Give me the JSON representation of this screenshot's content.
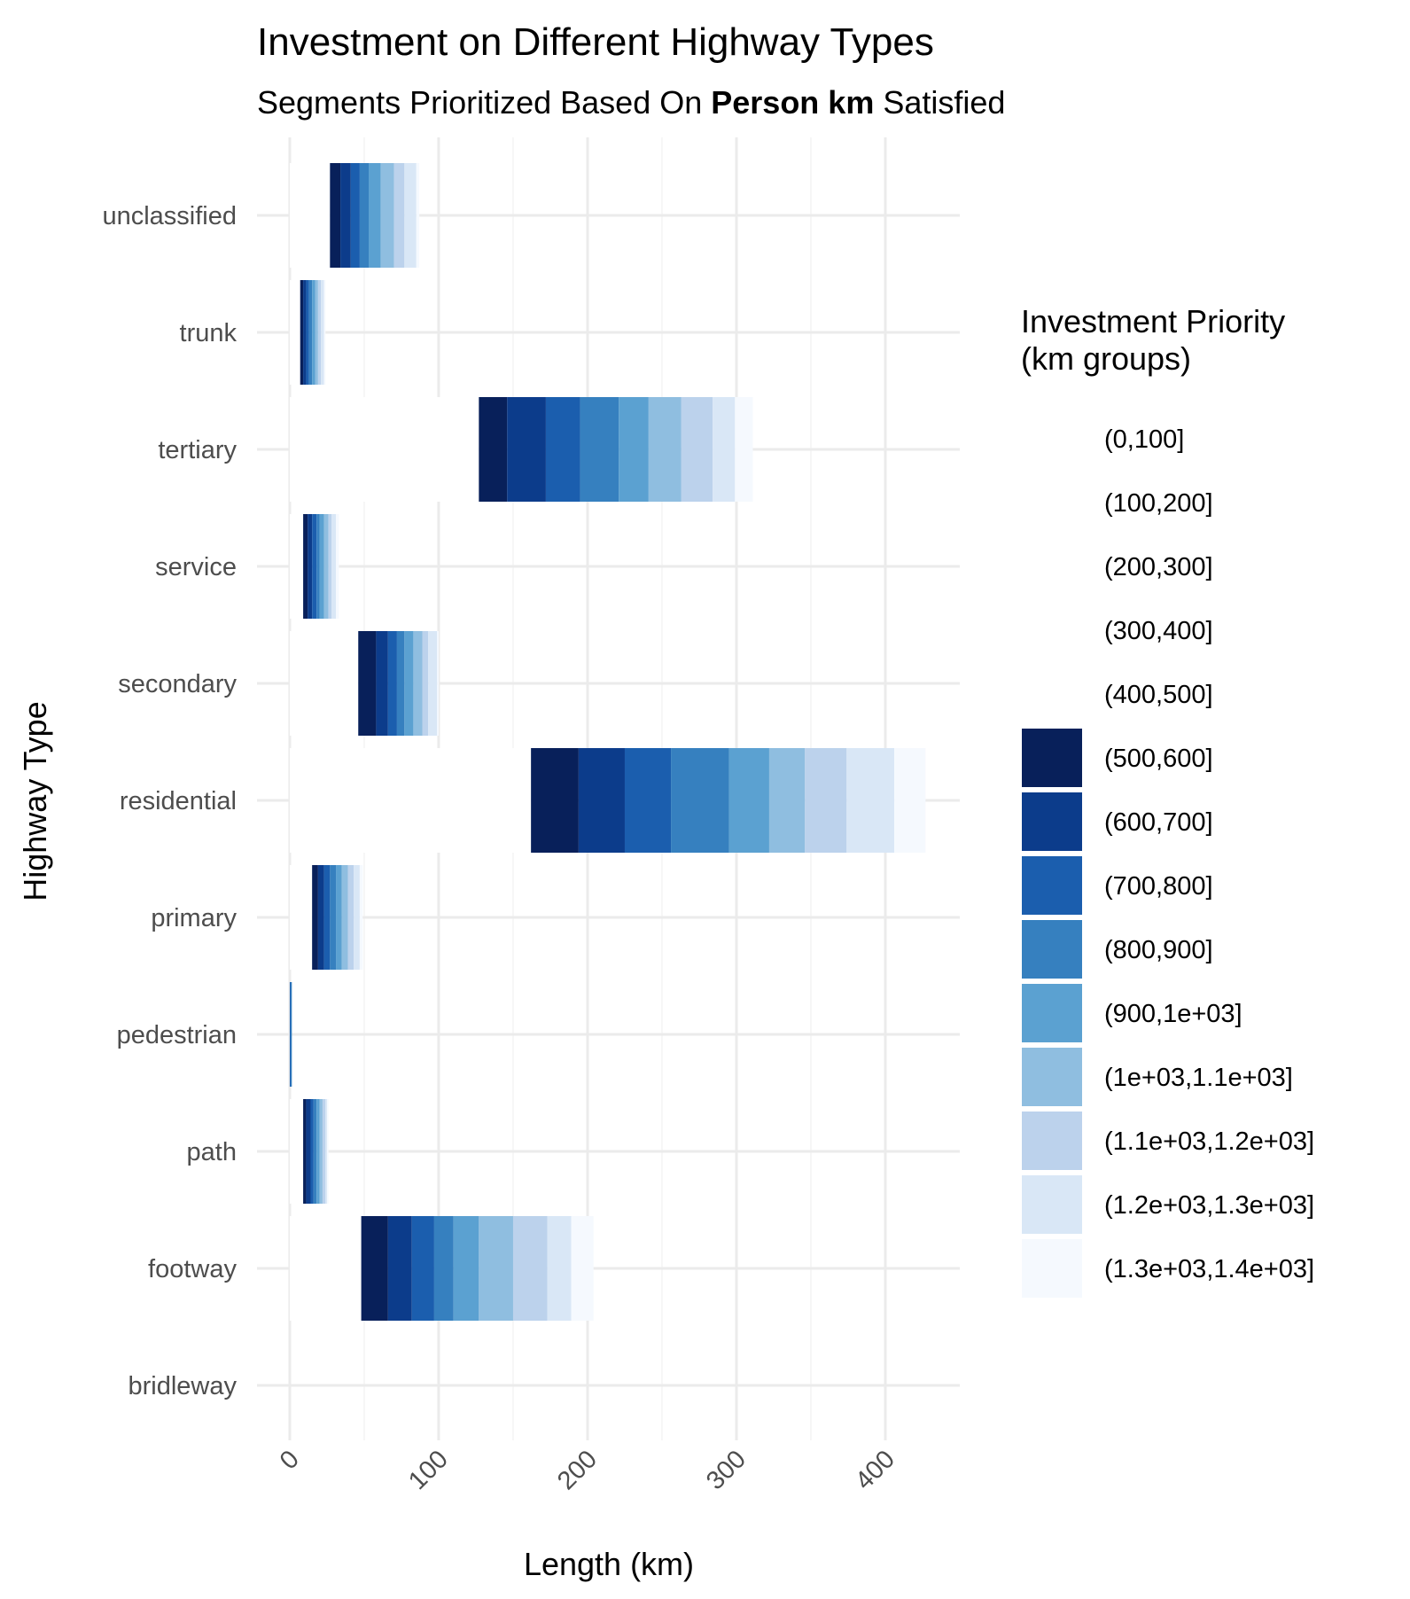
{
  "chart_data": {
    "type": "bar",
    "orientation": "horizontal",
    "stacked": true,
    "title": "Investment on Different Highway Types",
    "subtitle_parts": [
      {
        "text": "Segments Prioritized Based On ",
        "bold": false
      },
      {
        "text": "Person km",
        "bold": true
      },
      {
        "text": " Satisfied",
        "bold": false
      }
    ],
    "xlabel": "Length (km)",
    "ylabel": "Highway Type",
    "xlim": [
      -22,
      450
    ],
    "x_ticks": [
      "0",
      "100",
      "200",
      "300",
      "400"
    ],
    "x_tick_values": [
      0,
      100,
      200,
      300,
      400
    ],
    "grid": true,
    "legend": {
      "title_lines": [
        "Investment Priority",
        "(km groups)"
      ],
      "placement": "right"
    },
    "categories": [
      "unclassified",
      "trunk",
      "tertiary",
      "service",
      "secondary",
      "residential",
      "primary",
      "pedestrian",
      "path",
      "footway",
      "bridleway"
    ],
    "series": [
      {
        "name": "(0,100]",
        "color": "#ffffff",
        "values": [
          0,
          0,
          0,
          0,
          0,
          0,
          0,
          0,
          0,
          0,
          0
        ]
      },
      {
        "name": "(100,200]",
        "color": "#ffffff",
        "values": [
          0,
          0,
          0,
          0,
          0,
          0,
          0,
          0,
          0,
          0,
          0
        ]
      },
      {
        "name": "(200,300]",
        "color": "#ffffff",
        "values": [
          0,
          0,
          0,
          0,
          0,
          0,
          0,
          0,
          0,
          0,
          0
        ]
      },
      {
        "name": "(300,400]",
        "color": "#ffffff",
        "values": [
          0,
          0,
          0,
          0,
          0,
          0,
          0,
          0,
          0,
          0,
          0
        ]
      },
      {
        "name": "(400,500]",
        "color": "#ffffff",
        "values": [
          27,
          7,
          127,
          9,
          46,
          162,
          15,
          0,
          9,
          48,
          0
        ]
      },
      {
        "name": "(500,600]",
        "color": "#08205a",
        "values": [
          7,
          2,
          19,
          3,
          12,
          32,
          4,
          0,
          2,
          18,
          0
        ]
      },
      {
        "name": "(600,700]",
        "color": "#0c3c8b",
        "values": [
          7,
          2,
          26,
          3,
          8,
          31,
          4,
          0,
          3,
          16,
          0
        ]
      },
      {
        "name": "(700,800]",
        "color": "#1b5eae",
        "values": [
          6,
          2,
          23,
          3,
          6,
          31,
          4,
          0.5,
          2,
          15,
          0
        ]
      },
      {
        "name": "(800,900]",
        "color": "#3680bf",
        "values": [
          6,
          2,
          26,
          2,
          5,
          39,
          4,
          0.5,
          2,
          13,
          0
        ]
      },
      {
        "name": "(900,1e+03]",
        "color": "#5ba1d1",
        "values": [
          8,
          2,
          20,
          3,
          6,
          27,
          4,
          0,
          2,
          17,
          0
        ]
      },
      {
        "name": "(1e+03,1.1e+03]",
        "color": "#8fbee0",
        "values": [
          9,
          2,
          22,
          3,
          6,
          24,
          4,
          0,
          2,
          23,
          0
        ]
      },
      {
        "name": "(1.1e+03,1.2e+03]",
        "color": "#bcd2ec",
        "values": [
          7,
          2,
          21,
          2,
          4,
          28,
          4,
          0,
          2,
          23,
          0
        ]
      },
      {
        "name": "(1.2e+03,1.3e+03]",
        "color": "#d9e7f6",
        "values": [
          8,
          2,
          15,
          3,
          6,
          32,
          4,
          0,
          1,
          16,
          0
        ]
      },
      {
        "name": "(1.3e+03,1.4e+03]",
        "color": "#f5f9fe",
        "values": [
          2,
          1,
          12,
          2,
          1,
          21,
          2,
          0,
          1,
          15,
          0
        ]
      }
    ]
  }
}
